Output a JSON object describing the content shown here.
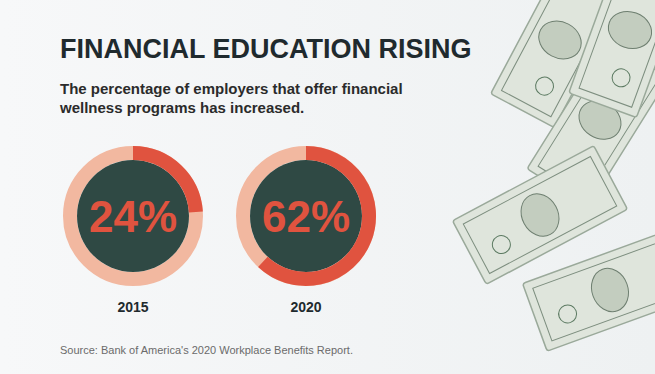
{
  "chart_data": {
    "type": "donut",
    "title": "FINANCIAL EDUCATION RISING",
    "subtitle": "The percentage of employers that offer financial wellness programs has increased.",
    "categories": [
      "2015",
      "2020"
    ],
    "values": [
      24,
      62
    ],
    "value_labels": [
      "24%",
      "62%"
    ],
    "ylim": [
      0,
      100
    ],
    "color": "#e0533f",
    "data_labels": true,
    "source": "Source: Bank of America's 2020 Workplace Benefits Report."
  }
}
